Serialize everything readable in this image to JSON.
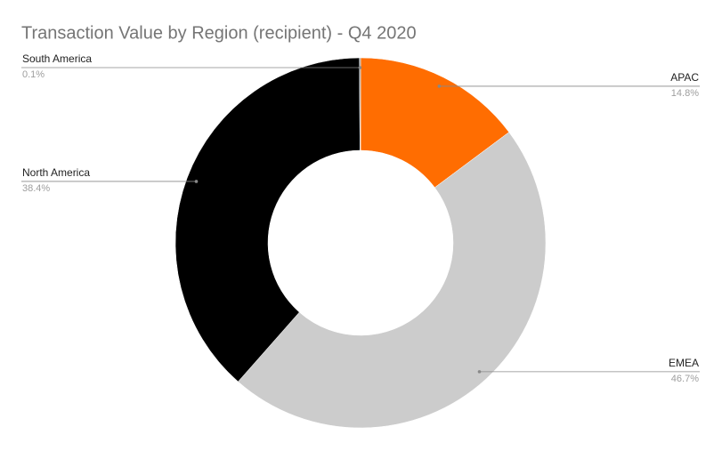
{
  "chart_data": {
    "type": "donut",
    "title": "Transaction Value by Region (recipient) - Q4 2020",
    "categories": [
      "APAC",
      "EMEA",
      "North America",
      "South America"
    ],
    "values": [
      14.8,
      46.7,
      38.4,
      0.1
    ],
    "value_labels": [
      "14.8%",
      "46.7%",
      "38.4%",
      "0.1%"
    ],
    "colors": [
      "#ff6d01",
      "#cccccc",
      "#000000",
      "#999999"
    ]
  }
}
